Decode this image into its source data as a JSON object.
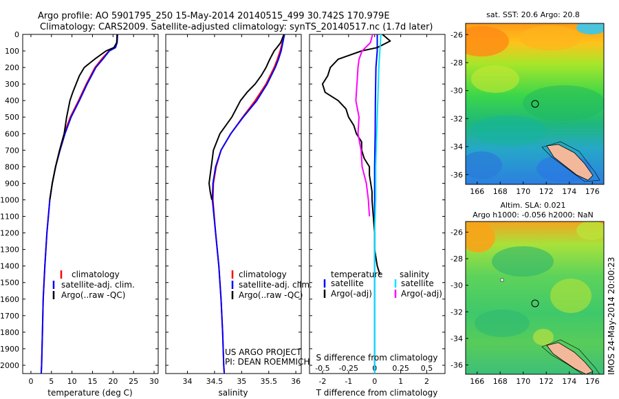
{
  "header": {
    "line1": "Argo profile: AO 5901795_250 15-May-2014 20140515_499 30.742S 170.979E",
    "line2": "Climatology: CARS2009. Satellite-adjusted climatology: synTS_20140517.nc (1.7d later)"
  },
  "colors": {
    "climatology": "#ff0000",
    "satellite_adj": "#0000ff",
    "argo": "#000000",
    "salinity_satellite": "#00e5ff",
    "salinity_argo": "#ff00ff"
  },
  "depth_ticks": [
    "0",
    "100",
    "200",
    "300",
    "400",
    "500",
    "600",
    "700",
    "800",
    "900",
    "1000",
    "1100",
    "1200",
    "1300",
    "1400",
    "1500",
    "1600",
    "1700",
    "1800",
    "1900",
    "2000"
  ],
  "chart_data": [
    {
      "type": "line",
      "name": "temperature-panel",
      "xlabel": "temperature (deg C)",
      "xlim": [
        -2,
        31
      ],
      "ylim": [
        2050,
        0
      ],
      "x_ticks": [
        "0",
        "5",
        "10",
        "15",
        "20",
        "25",
        "30"
      ],
      "legend": [
        "climatology",
        "satellite-adj. clim.",
        "Argo(..raw -QC)"
      ],
      "series": [
        {
          "name": "climatology",
          "color": "#ff0000",
          "depth": [
            0,
            50,
            80,
            100,
            150,
            200,
            300,
            400,
            500,
            600,
            700,
            800,
            900,
            1000,
            1200,
            1400,
            1600,
            1800,
            2000,
            2050
          ],
          "values": [
            21.0,
            20.9,
            20.5,
            19.0,
            17.2,
            15.6,
            13.5,
            11.6,
            9.6,
            8.1,
            7.0,
            6.0,
            5.2,
            4.6,
            3.9,
            3.4,
            3.0,
            2.8,
            2.6,
            2.5
          ]
        },
        {
          "name": "satellite-adj. clim.",
          "color": "#0000ff",
          "depth": [
            0,
            50,
            80,
            100,
            150,
            200,
            300,
            400,
            500,
            600,
            700,
            800,
            900,
            1000,
            1200,
            1400,
            1600,
            1800,
            2000,
            2050
          ],
          "values": [
            21.1,
            21.0,
            20.6,
            19.1,
            17.5,
            15.8,
            13.7,
            11.8,
            9.8,
            8.3,
            7.1,
            6.0,
            5.2,
            4.6,
            3.9,
            3.4,
            3.0,
            2.8,
            2.6,
            2.5
          ]
        },
        {
          "name": "Argo(..raw -QC)",
          "color": "#000000",
          "depth": [
            0,
            50,
            80,
            100,
            150,
            200,
            250,
            300,
            350,
            400,
            500,
            600,
            700,
            800,
            900,
            1000
          ],
          "values": [
            21.0,
            20.9,
            20.2,
            18.3,
            15.5,
            13.0,
            11.8,
            11.0,
            10.2,
            9.5,
            8.7,
            8.1,
            7.0,
            6.0,
            5.2,
            4.6
          ]
        }
      ]
    },
    {
      "type": "line",
      "name": "salinity-panel",
      "xlabel": "salinity",
      "xlim": [
        33.6,
        36.1
      ],
      "ylim": [
        2050,
        0
      ],
      "x_ticks": [
        "34",
        "34.5",
        "35",
        "35.5",
        "36"
      ],
      "legend": [
        "climatology",
        "satellite-adj. clim.",
        "Argo(..raw -QC)"
      ],
      "series": [
        {
          "name": "climatology",
          "color": "#ff0000",
          "depth": [
            0,
            50,
            100,
            150,
            200,
            300,
            400,
            500,
            600,
            700,
            800,
            900,
            1000,
            1200,
            1400,
            1600,
            1800,
            2000,
            2050
          ],
          "values": [
            35.78,
            35.75,
            35.71,
            35.66,
            35.6,
            35.45,
            35.25,
            35.02,
            34.8,
            34.62,
            34.53,
            34.48,
            34.47,
            34.52,
            34.58,
            34.62,
            34.65,
            34.67,
            34.68
          ]
        },
        {
          "name": "satellite-adj. clim.",
          "color": "#0000ff",
          "depth": [
            0,
            50,
            100,
            150,
            200,
            300,
            400,
            500,
            600,
            700,
            800,
            900,
            1000,
            1200,
            1400,
            1600,
            1800,
            2000,
            2050
          ],
          "values": [
            35.79,
            35.76,
            35.73,
            35.68,
            35.62,
            35.47,
            35.28,
            35.03,
            34.8,
            34.62,
            34.52,
            34.47,
            34.46,
            34.52,
            34.58,
            34.62,
            34.65,
            34.67,
            34.68
          ]
        },
        {
          "name": "Argo(..raw -QC)",
          "color": "#000000",
          "depth": [
            0,
            50,
            80,
            100,
            150,
            200,
            250,
            300,
            350,
            400,
            500,
            600,
            700,
            800,
            900,
            950,
            1000
          ],
          "values": [
            35.78,
            35.72,
            35.65,
            35.6,
            35.52,
            35.45,
            35.36,
            35.25,
            35.1,
            34.98,
            34.82,
            34.6,
            34.48,
            34.44,
            34.4,
            34.42,
            34.45
          ]
        }
      ]
    },
    {
      "type": "line",
      "name": "difference-panel",
      "xlabel": "T difference from climatology",
      "x2label": "S difference from climatology",
      "xlim": [
        -2.5,
        2.7
      ],
      "ylim": [
        2050,
        0
      ],
      "x_ticks": [
        "-2",
        "-1",
        "0",
        "1",
        "2"
      ],
      "x2_ticks": [
        "-0.5",
        "-0.25",
        "0",
        "0.25",
        "0.5"
      ],
      "legend_headers": [
        "temperature",
        "salinity"
      ],
      "legend_temperature": [
        "satellite",
        "Argo(-adj)"
      ],
      "legend_salinity": [
        "satellite",
        "Argo(-adj)"
      ],
      "series": [
        {
          "name": "satellite",
          "group": "temperature",
          "color": "#0000ff",
          "depth": [
            0,
            100,
            200,
            400,
            600,
            800,
            1000,
            1200,
            1400,
            1600,
            1800,
            2000,
            2050
          ],
          "values": [
            0.1,
            0.1,
            0.05,
            0.03,
            0.02,
            0.0,
            0.0,
            0.0,
            0.0,
            0.0,
            0.0,
            0.0,
            0.0
          ]
        },
        {
          "name": "Argo(-adj)",
          "group": "temperature",
          "color": "#000000",
          "depth": [
            0,
            40,
            80,
            100,
            150,
            200,
            250,
            300,
            350,
            400,
            450,
            500,
            550,
            600,
            650,
            700,
            750,
            800,
            850,
            900,
            950,
            1000,
            1100,
            1200,
            1300,
            1400,
            1450
          ],
          "values": [
            0.3,
            0.6,
            0.1,
            -0.5,
            -1.4,
            -1.7,
            -1.8,
            -2.0,
            -1.9,
            -1.4,
            -1.1,
            -1.0,
            -0.8,
            -0.7,
            -0.5,
            -0.5,
            -0.4,
            -0.2,
            -0.2,
            -0.15,
            -0.1,
            -0.1,
            -0.05,
            0.0,
            0.0,
            0.1,
            0.2
          ]
        },
        {
          "name": "satellite",
          "group": "salinity",
          "color": "#00e5ff",
          "depth": [
            0,
            100,
            200,
            400,
            600,
            800,
            1000,
            1200,
            1400,
            1600,
            1800,
            2000,
            2050
          ],
          "values": [
            0.06,
            0.05,
            0.04,
            0.03,
            0.02,
            0.01,
            0.01,
            0.0,
            0.0,
            0.0,
            0.0,
            0.0,
            0.0
          ]
        },
        {
          "name": "Argo(-adj)",
          "group": "salinity",
          "color": "#ff00ff",
          "depth": [
            0,
            50,
            100,
            150,
            200,
            300,
            400,
            500,
            600,
            700,
            800,
            900,
            1000,
            1100
          ],
          "values": [
            -0.02,
            -0.04,
            -0.12,
            -0.15,
            -0.16,
            -0.17,
            -0.18,
            -0.15,
            -0.16,
            -0.13,
            -0.12,
            -0.08,
            -0.06,
            -0.05
          ]
        }
      ],
      "annotations": [
        "US ARGO PROJECT",
        "PI: DEAN ROEMMICH"
      ]
    },
    {
      "type": "heatmap",
      "name": "sst-map",
      "title": "sat. SST: 20.6 Argo: 20.8",
      "x_ticks": [
        "166",
        "168",
        "170",
        "172",
        "174",
        "176"
      ],
      "y_ticks": [
        "-26",
        "-28",
        "-30",
        "-32",
        "-34",
        "-36"
      ],
      "xlim": [
        165,
        177
      ],
      "ylim": [
        -36.7,
        -25.2
      ],
      "marker": {
        "lon": 170.979,
        "lat": -30.742
      }
    },
    {
      "type": "heatmap",
      "name": "sla-map",
      "title_line1": "Altim. SLA: 0.021",
      "title_line2": "Argo h1000: -0.056 h2000: NaN",
      "x_ticks": [
        "166",
        "168",
        "170",
        "172",
        "174",
        "176"
      ],
      "y_ticks": [
        "-26",
        "-28",
        "-30",
        "-32",
        "-34",
        "-36"
      ],
      "xlim": [
        165,
        177
      ],
      "ylim": [
        -36.7,
        -25.2
      ],
      "marker": {
        "lon": 170.979,
        "lat": -30.742
      }
    }
  ],
  "footer": {
    "timestamp": "IMOS 24-May-2014 20:00:23"
  }
}
